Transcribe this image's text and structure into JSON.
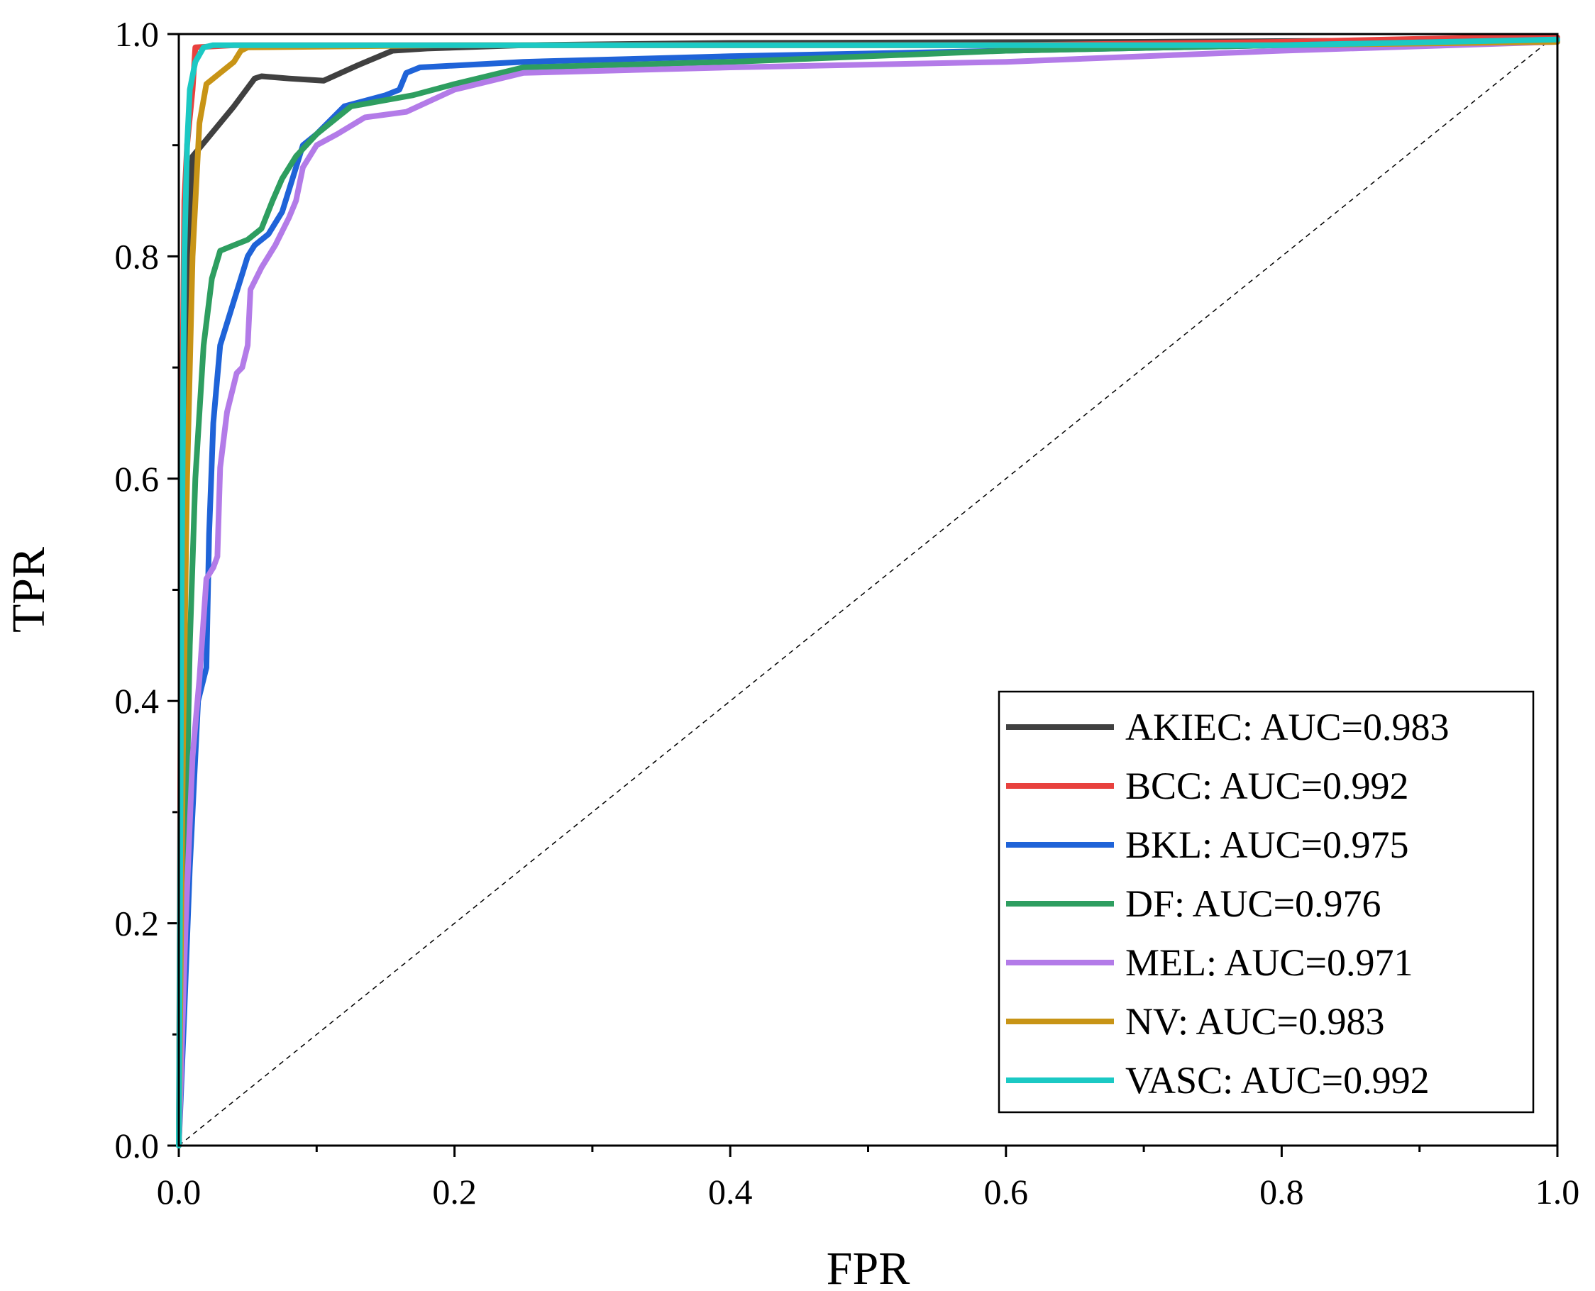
{
  "chart_data": {
    "type": "line",
    "title": "",
    "xlabel": "FPR",
    "ylabel": "TPR",
    "xlim": [
      0,
      1
    ],
    "ylim": [
      0,
      1
    ],
    "xticks": [
      "0.0",
      "0.2",
      "0.4",
      "0.6",
      "0.8",
      "1.0"
    ],
    "yticks": [
      "0.0",
      "0.2",
      "0.4",
      "0.6",
      "0.8",
      "1.0"
    ],
    "grid": false,
    "legend_position": "bottom-right",
    "reference_line": {
      "name": "chance",
      "x": [
        0,
        1
      ],
      "y": [
        0,
        1
      ],
      "style": "dashed"
    },
    "series": [
      {
        "name": "AKIEC",
        "legend": "AKIEC: AUC=0.983",
        "color": "#404040",
        "x": [
          0,
          0.003,
          0.006,
          0.01,
          0.02,
          0.04,
          0.055,
          0.06,
          0.08,
          0.105,
          0.13,
          0.155,
          0.18,
          0.25,
          0.4,
          0.7,
          1.0
        ],
        "y": [
          0,
          0.5,
          0.8,
          0.89,
          0.905,
          0.935,
          0.96,
          0.962,
          0.96,
          0.958,
          0.972,
          0.985,
          0.987,
          0.99,
          0.992,
          0.993,
          0.995
        ]
      },
      {
        "name": "BCC",
        "legend": "BCC: AUC=0.992",
        "color": "#e8413e",
        "x": [
          0,
          0.002,
          0.004,
          0.006,
          0.01,
          0.012,
          0.04,
          0.2,
          0.4,
          0.6,
          0.8,
          0.95,
          1.0
        ],
        "y": [
          0,
          0.6,
          0.85,
          0.9,
          0.95,
          0.988,
          0.99,
          0.99,
          0.99,
          0.99,
          0.993,
          0.997,
          0.997
        ]
      },
      {
        "name": "BKL",
        "legend": "BKL: AUC=0.975",
        "color": "#1f63d8",
        "x": [
          0,
          0.004,
          0.008,
          0.014,
          0.02,
          0.022,
          0.025,
          0.03,
          0.04,
          0.05,
          0.055,
          0.065,
          0.075,
          0.085,
          0.09,
          0.1,
          0.12,
          0.15,
          0.16,
          0.165,
          0.175,
          0.25,
          0.4,
          0.6,
          0.8,
          1.0
        ],
        "y": [
          0,
          0.12,
          0.25,
          0.4,
          0.43,
          0.55,
          0.65,
          0.72,
          0.76,
          0.8,
          0.81,
          0.82,
          0.84,
          0.88,
          0.9,
          0.91,
          0.935,
          0.945,
          0.95,
          0.965,
          0.97,
          0.975,
          0.98,
          0.985,
          0.99,
          0.995
        ]
      },
      {
        "name": "DF",
        "legend": "DF: AUC=0.976",
        "color": "#2e9e60",
        "x": [
          0,
          0.004,
          0.008,
          0.012,
          0.018,
          0.024,
          0.03,
          0.04,
          0.05,
          0.06,
          0.068,
          0.075,
          0.085,
          0.1,
          0.125,
          0.17,
          0.2,
          0.25,
          0.4,
          0.6,
          0.8,
          1.0
        ],
        "y": [
          0,
          0.2,
          0.45,
          0.6,
          0.72,
          0.78,
          0.805,
          0.81,
          0.815,
          0.825,
          0.85,
          0.87,
          0.89,
          0.91,
          0.935,
          0.945,
          0.955,
          0.97,
          0.975,
          0.985,
          0.99,
          0.993
        ]
      },
      {
        "name": "MEL",
        "legend": "MEL: AUC=0.971",
        "color": "#b37be8",
        "x": [
          0,
          0.005,
          0.01,
          0.015,
          0.02,
          0.025,
          0.028,
          0.03,
          0.035,
          0.042,
          0.046,
          0.05,
          0.052,
          0.06,
          0.07,
          0.08,
          0.085,
          0.09,
          0.1,
          0.115,
          0.135,
          0.165,
          0.2,
          0.25,
          0.4,
          0.6,
          0.8,
          1.0
        ],
        "y": [
          0,
          0.2,
          0.35,
          0.42,
          0.51,
          0.52,
          0.53,
          0.61,
          0.66,
          0.695,
          0.7,
          0.72,
          0.77,
          0.79,
          0.81,
          0.835,
          0.85,
          0.88,
          0.9,
          0.91,
          0.925,
          0.93,
          0.95,
          0.965,
          0.97,
          0.975,
          0.985,
          0.993
        ]
      },
      {
        "name": "NV",
        "legend": "NV: AUC=0.983",
        "color": "#c89416",
        "x": [
          0,
          0.003,
          0.006,
          0.01,
          0.015,
          0.02,
          0.03,
          0.04,
          0.045,
          0.05,
          0.2,
          0.4,
          0.6,
          0.8,
          1.0
        ],
        "y": [
          0,
          0.35,
          0.6,
          0.8,
          0.92,
          0.955,
          0.965,
          0.975,
          0.985,
          0.988,
          0.99,
          0.99,
          0.99,
          0.99,
          0.993
        ]
      },
      {
        "name": "VASC",
        "legend": "VASC: AUC=0.992",
        "color": "#1bc9c4",
        "x": [
          0,
          0.002,
          0.004,
          0.006,
          0.008,
          0.012,
          0.018,
          0.025,
          0.05,
          0.2,
          0.5,
          0.8,
          1.0
        ],
        "y": [
          0,
          0.5,
          0.8,
          0.9,
          0.95,
          0.975,
          0.988,
          0.99,
          0.99,
          0.99,
          0.99,
          0.99,
          0.995
        ]
      }
    ]
  }
}
